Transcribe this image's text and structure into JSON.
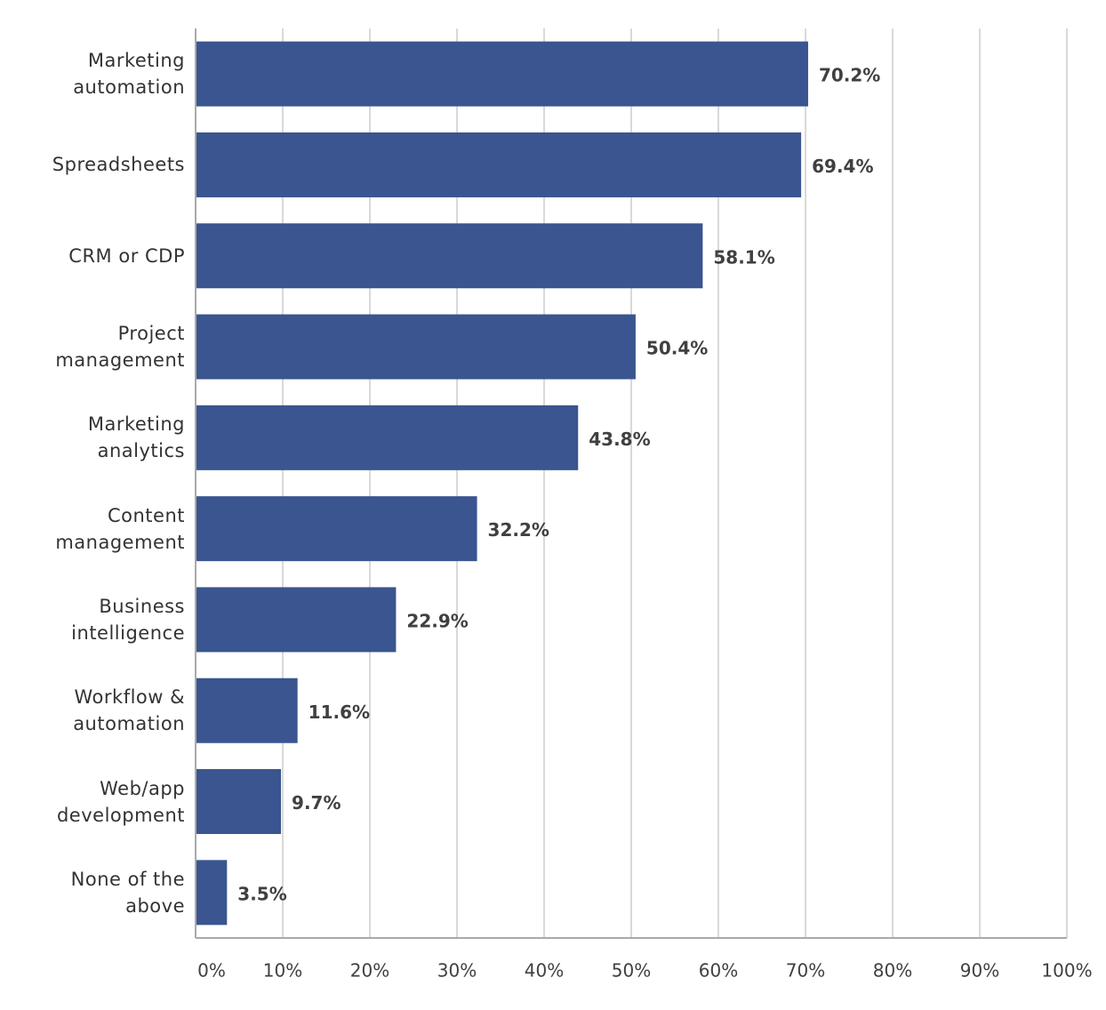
{
  "chart_data": {
    "type": "bar",
    "orientation": "horizontal",
    "categories": [
      "Marketing automation",
      "Spreadsheets",
      "CRM or CDP",
      "Project management",
      "Marketing analytics",
      "Content management",
      "Business intelligence",
      "Workflow & automation",
      "Web/app development",
      "None of the above"
    ],
    "values": [
      70.2,
      69.4,
      58.1,
      50.4,
      43.8,
      32.2,
      22.9,
      11.6,
      9.7,
      3.5
    ],
    "value_labels": [
      "70.2%",
      "69.4%",
      "58.1%",
      "50.4%",
      "43.8%",
      "32.2%",
      "22.9%",
      "11.6%",
      "9.7%",
      "3.5%"
    ],
    "color": "#3a558f",
    "xlim": [
      0,
      100
    ],
    "xticks": [
      {
        "value": 0,
        "label": "0%"
      },
      {
        "value": 10,
        "label": "10%"
      },
      {
        "value": 20,
        "label": "20%"
      },
      {
        "value": 30,
        "label": "30%"
      },
      {
        "value": 40,
        "label": "40%"
      },
      {
        "value": 50,
        "label": "50%"
      },
      {
        "value": 60,
        "label": "60%"
      },
      {
        "value": 70,
        "label": "70%"
      },
      {
        "value": 80,
        "label": "80%"
      },
      {
        "value": 90,
        "label": "90%"
      },
      {
        "value": 100,
        "label": "100%"
      }
    ],
    "grid": true
  }
}
